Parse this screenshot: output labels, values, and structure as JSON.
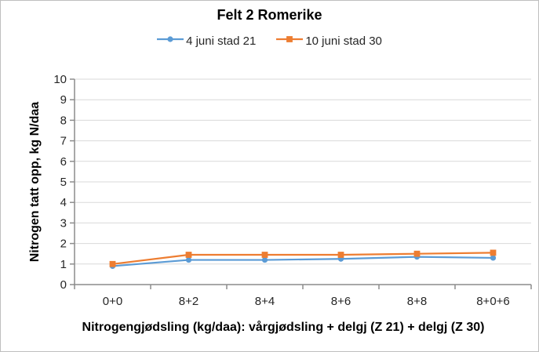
{
  "chart_data": {
    "type": "line",
    "title": "Felt 2 Romerike",
    "categories": [
      "0+0",
      "8+2",
      "8+4",
      "8+6",
      "8+8",
      "8+0+6"
    ],
    "series": [
      {
        "name": "4 juni stad 21",
        "color": "#5B9BD5",
        "marker": "circle",
        "values": [
          0.9,
          1.2,
          1.2,
          1.25,
          1.35,
          1.3
        ]
      },
      {
        "name": "10 juni stad 30",
        "color": "#ED7D31",
        "marker": "square",
        "values": [
          1.0,
          1.45,
          1.45,
          1.45,
          1.5,
          1.55
        ]
      }
    ],
    "xlabel": "Nitrogengjødsling (kg/daa): vårgjødsling + delgj (Z 21) + delgj (Z 30)",
    "ylabel": "Nitrogen tatt opp, kg N/daa",
    "ylim": [
      0,
      10
    ],
    "yticks": [
      0,
      1,
      2,
      3,
      4,
      5,
      6,
      7,
      8,
      9,
      10
    ],
    "grid": "horizontal",
    "legend_position": "top",
    "colors": {
      "gridline": "#d9d9d9",
      "axis": "#8c8c8c",
      "text": "#262626",
      "frame_border": "#bfbfbf"
    }
  }
}
